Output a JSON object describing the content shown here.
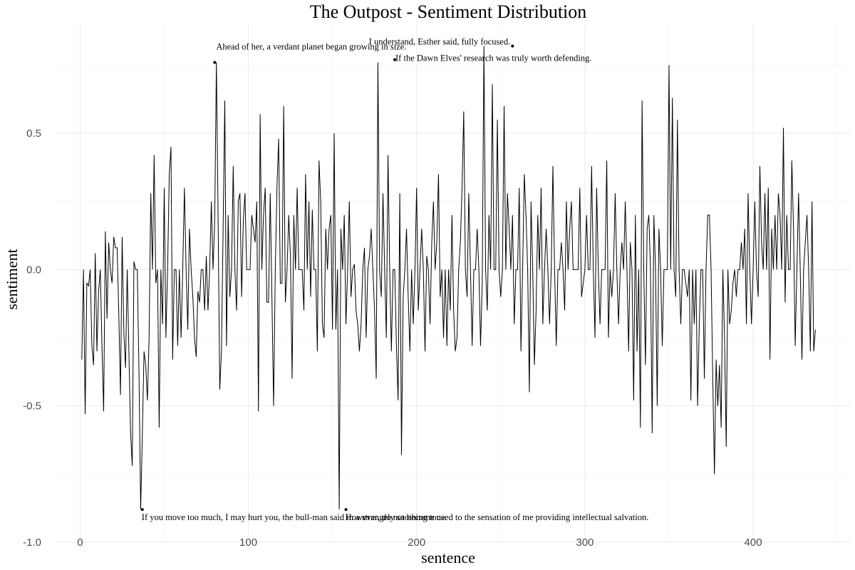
{
  "chart_data": {
    "type": "line",
    "title": "The Outpost - Sentiment Distribution",
    "xlabel": "sentence",
    "ylabel": "sentiment",
    "xlim": [
      -15,
      458
    ],
    "ylim": [
      -1.0,
      0.9
    ],
    "x_ticks": [
      0,
      100,
      200,
      300,
      400
    ],
    "x_tick_labels": [
      "0",
      "100",
      "200",
      "300",
      "400"
    ],
    "y_ticks": [
      -1.0,
      -0.5,
      0.0,
      0.5
    ],
    "y_tick_labels": [
      "-1.0",
      "-0.5",
      "0.0",
      "0.5"
    ],
    "grid": true,
    "legend": "none",
    "line_color": "#000000",
    "series": [
      {
        "x_start": 1,
        "values": [
          -0.33,
          0.0,
          -0.53,
          -0.05,
          -0.06,
          0.0,
          -0.28,
          -0.35,
          0.06,
          -0.3,
          -0.08,
          0.0,
          -0.28,
          -0.52,
          0.14,
          -0.18,
          0.1,
          0.0,
          -0.05,
          0.12,
          0.08,
          0.08,
          -0.16,
          -0.46,
          0.12,
          -0.23,
          -0.36,
          0.0,
          -0.3,
          -0.6,
          -0.72,
          0.03,
          0.0,
          0.0,
          -0.38,
          -0.88,
          -0.6,
          -0.3,
          -0.35,
          -0.48,
          -0.25,
          0.28,
          0.0,
          0.42,
          -0.05,
          0.0,
          -0.58,
          0.0,
          -0.2,
          0.3,
          -0.25,
          0.0,
          0.35,
          0.45,
          -0.33,
          0.0,
          0.0,
          -0.28,
          0.0,
          -0.25,
          0.0,
          0.3,
          0.0,
          -0.22,
          0.15,
          0.0,
          -0.1,
          -0.25,
          -0.32,
          -0.08,
          -0.12,
          0.0,
          0.0,
          -0.15,
          0.05,
          -0.15,
          0.0,
          0.25,
          0.0,
          0.18,
          0.76,
          0.2,
          -0.44,
          -0.3,
          0.15,
          0.62,
          -0.28,
          0.2,
          -0.1,
          0.0,
          0.38,
          0.0,
          -0.15,
          0.25,
          0.28,
          -0.1,
          0.18,
          0.28,
          0.0,
          0.0,
          0.0,
          0.2,
          0.15,
          0.1,
          0.25,
          -0.52,
          0.57,
          0.0,
          0.2,
          0.3,
          -0.12,
          -0.12,
          0.28,
          -0.1,
          -0.5,
          0.0,
          0.3,
          0.48,
          -0.05,
          -0.05,
          0.6,
          -0.12,
          0.0,
          0.2,
          0.05,
          -0.4,
          0.2,
          0.0,
          0.3,
          0.0,
          0.0,
          0.0,
          -0.15,
          0.35,
          0.0,
          0.25,
          -0.1,
          0.22,
          0.0,
          0.0,
          -0.3,
          0.4,
          0.25,
          -0.2,
          -0.25,
          0.15,
          0.0,
          0.15,
          0.2,
          -0.22,
          0.5,
          -0.22,
          0.0,
          -0.88,
          0.15,
          0.0,
          0.2,
          -0.2,
          0.0,
          0.25,
          -0.1,
          0.0,
          0.02,
          -0.15,
          -0.2,
          -0.3,
          -0.2,
          0.0,
          0.08,
          -0.25,
          0.0,
          0.05,
          0.15,
          0.0,
          -0.15,
          -0.4,
          0.76,
          0.0,
          -0.1,
          0.28,
          0.0,
          -0.25,
          0.42,
          0.0,
          -0.3,
          0.0,
          0.0,
          -0.28,
          -0.48,
          0.28,
          -0.68,
          -0.1,
          0.0,
          0.15,
          -0.1,
          -0.3,
          0.0,
          -0.2,
          0.0,
          0.3,
          -0.15,
          0.0,
          0.15,
          0.0,
          -0.3,
          0.05,
          0.0,
          -0.2,
          0.1,
          0.25,
          0.0,
          0.1,
          0.35,
          -0.1,
          0.0,
          -0.25,
          0.0,
          -0.28,
          0.0,
          -0.15,
          0.2,
          -0.15,
          -0.3,
          -0.25,
          0.0,
          0.1,
          0.3,
          0.58,
          0.0,
          -0.1,
          0.28,
          0.0,
          -0.28,
          0.0,
          0.0,
          0.15,
          0.0,
          -0.28,
          -0.05,
          0.82,
          0.0,
          -0.15,
          0.2,
          0.0,
          0.68,
          0.0,
          0.0,
          0.55,
          0.0,
          -0.1,
          0.0,
          0.6,
          0.0,
          0.28,
          0.15,
          0.0,
          0.2,
          -0.2,
          0.0,
          0.0,
          0.3,
          -0.3,
          0.0,
          0.35,
          0.2,
          0.0,
          -0.45,
          0.25,
          0.0,
          -0.35,
          -0.15,
          0.2,
          0.0,
          0.3,
          -0.2,
          0.0,
          0.15,
          0.0,
          -0.2,
          0.0,
          0.38,
          0.0,
          -0.28,
          0.0,
          0.0,
          0.1,
          0.0,
          -0.15,
          0.25,
          0.0,
          0.15,
          0.25,
          0.0,
          0.0,
          0.0,
          0.0,
          0.3,
          -0.1,
          -0.05,
          0.0,
          0.2,
          0.0,
          0.0,
          0.38,
          0.0,
          -0.25,
          0.3,
          0.0,
          -0.2,
          0.0,
          0.0,
          0.0,
          0.4,
          -0.25,
          0.0,
          -0.1,
          0.0,
          0.28,
          0.0,
          -0.2,
          0.0,
          0.1,
          0.0,
          0.25,
          0.0,
          -0.3,
          0.1,
          0.0,
          -0.48,
          0.2,
          -0.3,
          0.0,
          -0.58,
          0.62,
          0.0,
          -0.35,
          0.15,
          0.2,
          0.0,
          -0.6,
          0.2,
          0.0,
          -0.5,
          0.15,
          0.0,
          -0.28,
          0.0,
          0.0,
          0.0,
          0.75,
          0.0,
          0.63,
          0.0,
          -0.1,
          0.55,
          0.0,
          -0.2,
          0.0,
          0.0,
          -0.05,
          -0.1,
          0.0,
          -0.48,
          0.0,
          -0.2,
          0.0,
          -0.5,
          -0.2,
          0.0,
          0.0,
          -0.4,
          0.0,
          0.2,
          0.2,
          0.0,
          -0.4,
          -0.75,
          -0.33,
          -0.5,
          -0.35,
          -0.58,
          0.0,
          -0.25,
          -0.65,
          0.0,
          -0.2,
          -0.15,
          -0.05,
          0.0,
          -0.1,
          0.0,
          0.0,
          0.1,
          0.0,
          0.15,
          -0.2,
          0.28,
          0.0,
          -0.2,
          0.0,
          0.25,
          0.0,
          -0.1,
          0.38,
          0.1,
          0.0,
          0.28,
          0.0,
          0.3,
          -0.33,
          0.15,
          0.0,
          0.2,
          0.0,
          0.28,
          0.2,
          0.0,
          0.52,
          -0.12,
          0.2,
          0.0,
          0.0,
          0.4,
          0.15,
          -0.28,
          0.0,
          0.28,
          0.0,
          -0.33,
          0.0,
          0.1,
          0.2,
          0.0,
          -0.3,
          0.25,
          -0.3,
          -0.22
        ]
      }
    ],
    "annotations": [
      {
        "x": 80,
        "y": 0.76,
        "text": "Ahead of her, a verdant planet began growing in size.",
        "va": "above"
      },
      {
        "x": 187,
        "y": 0.77,
        "text": "If the Dawn Elves' research was truly worth defending.",
        "va": "right"
      },
      {
        "x": 257,
        "y": 0.82,
        "text": "I understand, Esther said, fully focused.",
        "va": "above-left"
      },
      {
        "x": 37,
        "y": -0.88,
        "text": "If you move too much, I may hurt you, the bull-man said in a strangely soothing tone.",
        "va": "below"
      },
      {
        "x": 158,
        "y": -0.88,
        "text": "However, do not become used to the sensation of me providing intellectual salvation.",
        "va": "below"
      }
    ]
  }
}
